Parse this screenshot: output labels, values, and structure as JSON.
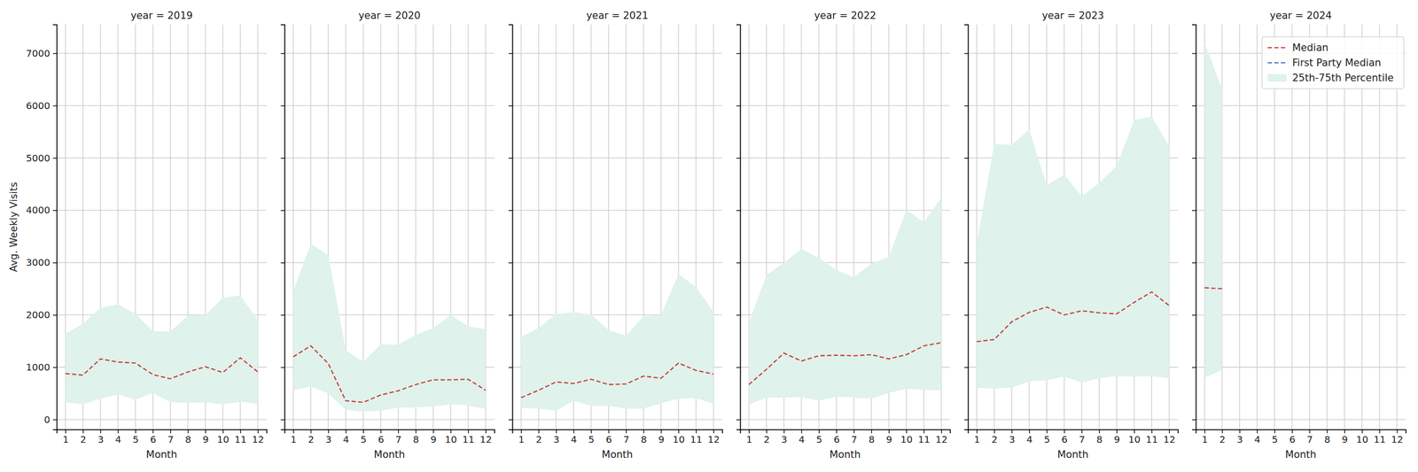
{
  "chart_data": [
    {
      "type": "line",
      "title": "year = 2019",
      "xlabel": "Month",
      "ylabel": "Avg. Weekly Visits",
      "x": [
        1,
        2,
        3,
        4,
        5,
        6,
        7,
        8,
        9,
        10,
        11,
        12
      ],
      "xlim": [
        0.5,
        12.5
      ],
      "xticks": [
        1,
        2,
        3,
        4,
        5,
        6,
        7,
        8,
        9,
        10,
        11,
        12
      ],
      "ylim": [
        -190,
        7550
      ],
      "yticks": [
        0,
        1000,
        2000,
        3000,
        4000,
        5000,
        6000,
        7000
      ],
      "grid": true,
      "series": [
        {
          "type": "line",
          "color": "#c9403b",
          "line_style": "dashed",
          "values": [
            880,
            850,
            1160,
            1100,
            1080,
            860,
            780,
            910,
            1010,
            900,
            1180,
            910
          ]
        },
        {
          "type": "band",
          "color": "#dff2ec",
          "low": [
            330,
            290,
            400,
            480,
            380,
            510,
            330,
            320,
            330,
            290,
            340,
            300
          ],
          "high": [
            1640,
            1830,
            2140,
            2200,
            2020,
            1690,
            1680,
            1990,
            2000,
            2330,
            2370,
            1900
          ]
        }
      ]
    },
    {
      "type": "line",
      "title": "year = 2020",
      "xlabel": "Month",
      "x": [
        1,
        2,
        3,
        4,
        5,
        6,
        7,
        8,
        9,
        10,
        11,
        12
      ],
      "xlim": [
        0.5,
        12.5
      ],
      "xticks": [
        1,
        2,
        3,
        4,
        5,
        6,
        7,
        8,
        9,
        10,
        11,
        12
      ],
      "ylim": [
        -190,
        7550
      ],
      "yticks": [
        0,
        1000,
        2000,
        3000,
        4000,
        5000,
        6000,
        7000
      ],
      "grid": true,
      "tick_labels": "x",
      "series": [
        {
          "type": "line",
          "color": "#c9403b",
          "line_style": "dashed",
          "values": [
            1200,
            1410,
            1070,
            360,
            330,
            470,
            550,
            670,
            760,
            760,
            770,
            560
          ]
        },
        {
          "type": "band",
          "color": "#dff2ec",
          "low": [
            560,
            630,
            500,
            190,
            150,
            170,
            230,
            230,
            250,
            290,
            270,
            200
          ],
          "high": [
            2460,
            3360,
            3140,
            1330,
            1100,
            1440,
            1430,
            1620,
            1750,
            2000,
            1780,
            1730
          ]
        }
      ]
    },
    {
      "type": "line",
      "title": "year = 2021",
      "xlabel": "Month",
      "x": [
        1,
        2,
        3,
        4,
        5,
        6,
        7,
        8,
        9,
        10,
        11,
        12
      ],
      "xlim": [
        0.5,
        12.5
      ],
      "xticks": [
        1,
        2,
        3,
        4,
        5,
        6,
        7,
        8,
        9,
        10,
        11,
        12
      ],
      "ylim": [
        -190,
        7550
      ],
      "yticks": [
        0,
        1000,
        2000,
        3000,
        4000,
        5000,
        6000,
        7000
      ],
      "grid": true,
      "tick_labels": "x",
      "series": [
        {
          "type": "line",
          "color": "#c9403b",
          "line_style": "dashed",
          "values": [
            420,
            560,
            720,
            690,
            770,
            670,
            680,
            830,
            790,
            1080,
            940,
            870
          ]
        },
        {
          "type": "band",
          "color": "#dff2ec",
          "low": [
            220,
            210,
            170,
            360,
            260,
            260,
            210,
            210,
            310,
            400,
            410,
            300
          ],
          "high": [
            1580,
            1750,
            2020,
            2050,
            2010,
            1710,
            1600,
            1970,
            2000,
            2780,
            2530,
            2060
          ]
        }
      ]
    },
    {
      "type": "line",
      "title": "year = 2022",
      "xlabel": "Month",
      "x": [
        1,
        2,
        3,
        4,
        5,
        6,
        7,
        8,
        9,
        10,
        11,
        12
      ],
      "xlim": [
        0.5,
        12.5
      ],
      "xticks": [
        1,
        2,
        3,
        4,
        5,
        6,
        7,
        8,
        9,
        10,
        11,
        12
      ],
      "ylim": [
        -190,
        7550
      ],
      "yticks": [
        0,
        1000,
        2000,
        3000,
        4000,
        5000,
        6000,
        7000
      ],
      "grid": true,
      "tick_labels": "x",
      "series": [
        {
          "type": "line",
          "color": "#c9403b",
          "line_style": "dashed",
          "values": [
            670,
            960,
            1270,
            1120,
            1220,
            1230,
            1220,
            1240,
            1160,
            1240,
            1410,
            1470
          ]
        },
        {
          "type": "band",
          "color": "#dff2ec",
          "low": [
            290,
            420,
            420,
            430,
            360,
            440,
            420,
            400,
            510,
            590,
            570,
            560
          ],
          "high": [
            1850,
            2760,
            3000,
            3260,
            3090,
            2860,
            2720,
            2980,
            3110,
            4010,
            3770,
            4240
          ]
        }
      ]
    },
    {
      "type": "line",
      "title": "year = 2023",
      "xlabel": "Month",
      "x": [
        1,
        2,
        3,
        4,
        5,
        6,
        7,
        8,
        9,
        10,
        11,
        12
      ],
      "xlim": [
        0.5,
        12.5
      ],
      "xticks": [
        1,
        2,
        3,
        4,
        5,
        6,
        7,
        8,
        9,
        10,
        11,
        12
      ],
      "ylim": [
        -190,
        7550
      ],
      "yticks": [
        0,
        1000,
        2000,
        3000,
        4000,
        5000,
        6000,
        7000
      ],
      "grid": true,
      "tick_labels": "x",
      "series": [
        {
          "type": "line",
          "color": "#c9403b",
          "line_style": "dashed",
          "values": [
            1490,
            1530,
            1870,
            2050,
            2150,
            2000,
            2080,
            2040,
            2020,
            2240,
            2440,
            2180
          ]
        },
        {
          "type": "band",
          "color": "#dff2ec",
          "low": [
            610,
            590,
            610,
            730,
            750,
            820,
            710,
            790,
            830,
            820,
            830,
            790
          ],
          "high": [
            3370,
            5270,
            5250,
            5540,
            4480,
            4680,
            4270,
            4520,
            4850,
            5720,
            5790,
            5230
          ]
        }
      ]
    },
    {
      "type": "line",
      "title": "year = 2024",
      "xlabel": "Month",
      "x": [
        1,
        2,
        3,
        4,
        5,
        6,
        7,
        8,
        9,
        10,
        11,
        12
      ],
      "xlim": [
        0.5,
        12.5
      ],
      "xticks": [
        1,
        2,
        3,
        4,
        5,
        6,
        7,
        8,
        9,
        10,
        11,
        12
      ],
      "ylim": [
        -190,
        7550
      ],
      "yticks": [
        0,
        1000,
        2000,
        3000,
        4000,
        5000,
        6000,
        7000
      ],
      "grid": true,
      "tick_labels": "x",
      "legend": "upper right",
      "series": [
        {
          "name": "Median",
          "type": "line",
          "color": "#c9403b",
          "line_style": "dashed",
          "values": [
            2520,
            2500,
            null,
            null,
            null,
            null,
            null,
            null,
            null,
            null,
            null,
            null
          ]
        },
        {
          "name": "First Party Median",
          "type": "line",
          "color": "#4c6fc4",
          "line_style": "dashed",
          "values": [
            null,
            null,
            null,
            null,
            null,
            null,
            null,
            null,
            null,
            null,
            null,
            null
          ]
        },
        {
          "name": "25th-75th Percentile",
          "type": "band",
          "color": "#dff2ec",
          "low": [
            800,
            950,
            null,
            null,
            null,
            null,
            null,
            null,
            null,
            null,
            null,
            null
          ],
          "high": [
            7200,
            6320,
            null,
            null,
            null,
            null,
            null,
            null,
            null,
            null,
            null,
            null
          ]
        }
      ]
    }
  ]
}
